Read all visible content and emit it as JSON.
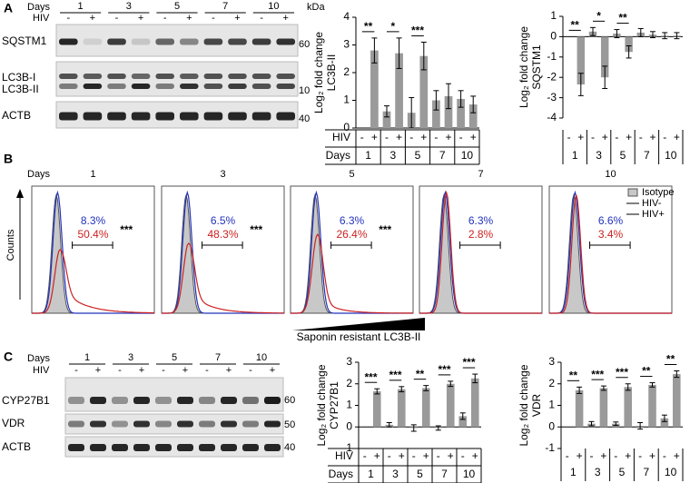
{
  "panels": [
    "A",
    "B",
    "C"
  ],
  "blots": [
    {
      "days_label": "Days",
      "hiv_label": "HIV",
      "kda_label": "kDa",
      "days": [
        "1",
        "3",
        "5",
        "7",
        "10"
      ],
      "hiv": [
        "-",
        "+",
        "-",
        "+",
        "-",
        "+",
        "-",
        "+",
        "-",
        "+"
      ],
      "rows": [
        {
          "labels": [
            "SQSTM1"
          ],
          "kda": "60"
        },
        {
          "labels": [
            "LC3B-I",
            "LC3B-II"
          ],
          "kda": "10"
        },
        {
          "labels": [
            "ACTB"
          ],
          "kda": "40"
        }
      ]
    },
    {
      "days_label": "Days",
      "hiv_label": "HIV",
      "days": [
        "1",
        "3",
        "5",
        "7",
        "10"
      ],
      "hiv": [
        "-",
        "+",
        "-",
        "+",
        "-",
        "+",
        "-",
        "+",
        "-",
        "+"
      ],
      "rows": [
        {
          "labels": [
            "CYP27B1"
          ],
          "kda": "60"
        },
        {
          "labels": [
            "VDR"
          ],
          "kda": "50"
        },
        {
          "labels": [
            "ACTB"
          ],
          "kda": "40"
        }
      ]
    }
  ],
  "flow": {
    "days_label": "Days",
    "ylabel": "Counts",
    "xlabel": "Saponin resistant LC3B-II",
    "legend": [
      "Isotype",
      "HIV-",
      "HIV+"
    ],
    "panels": [
      {
        "day": "1",
        "neg": "8.3%",
        "pos": "50.4%",
        "sig": "***"
      },
      {
        "day": "3",
        "neg": "6.5%",
        "pos": "48.3%",
        "sig": "***"
      },
      {
        "day": "5",
        "neg": "6.3%",
        "pos": "26.4%",
        "sig": "***"
      },
      {
        "day": "7",
        "neg": "6.3%",
        "pos": "2.8%",
        "sig": null
      },
      {
        "day": "10",
        "neg": "6.6%",
        "pos": "3.4%",
        "sig": null
      }
    ]
  },
  "chart_data": [
    {
      "type": "bar",
      "ylabel": [
        "Log₂ fold change",
        "LC3B-II"
      ],
      "group_label": "Days",
      "series_label": "HIV",
      "categories": [
        "1",
        "3",
        "5",
        "7",
        "10"
      ],
      "ylim": [
        0,
        4
      ],
      "yticks": [
        0,
        1,
        2,
        3,
        4
      ],
      "series": [
        {
          "name": "-",
          "color": "#9a9a9a",
          "values": [
            0,
            0.6,
            0.55,
            1.0,
            1.05
          ],
          "errors": [
            0,
            0.2,
            0.55,
            0.35,
            0.3
          ]
        },
        {
          "name": "+",
          "color": "#9a9a9a",
          "values": [
            2.8,
            2.7,
            2.6,
            1.15,
            0.85
          ],
          "errors": [
            0.45,
            0.55,
            0.5,
            0.45,
            0.3
          ]
        }
      ],
      "annotations": [
        "**",
        "*",
        "***",
        null,
        null
      ]
    },
    {
      "type": "bar",
      "ylabel": [
        "Log₂ fold change",
        "SQSTM1"
      ],
      "categories": [
        "1",
        "3",
        "5",
        "7",
        "10"
      ],
      "ylim": [
        -4,
        1
      ],
      "yticks": [
        -4,
        -3,
        -2,
        -1,
        0,
        1
      ],
      "series": [
        {
          "name": "-",
          "color": "#9a9a9a",
          "values": [
            0,
            0.25,
            0.15,
            0.2,
            0.05
          ],
          "errors": [
            0,
            0.2,
            0.2,
            0.2,
            0.15
          ]
        },
        {
          "name": "+",
          "color": "#9a9a9a",
          "values": [
            -2.35,
            -2.0,
            -0.75,
            0.1,
            0.05
          ],
          "errors": [
            0.55,
            0.55,
            0.3,
            0.15,
            0.15
          ]
        }
      ],
      "annotations": [
        "**",
        "*",
        "**",
        null,
        null
      ]
    },
    {
      "type": "bar",
      "ylabel": [
        "Log₂ fold change",
        "CYP27B1"
      ],
      "group_label": "Days",
      "series_label": "HIV",
      "categories": [
        "1",
        "3",
        "5",
        "7",
        "10"
      ],
      "ylim": [
        -1,
        3
      ],
      "yticks": [
        -1,
        0,
        1,
        2,
        3
      ],
      "series": [
        {
          "name": "-",
          "color": "#9a9a9a",
          "values": [
            0,
            0.1,
            -0.05,
            -0.05,
            0.5
          ],
          "errors": [
            0,
            0.1,
            0.15,
            0.1,
            0.15
          ]
        },
        {
          "name": "+",
          "color": "#9a9a9a",
          "values": [
            1.65,
            1.75,
            1.8,
            2.0,
            2.25
          ],
          "errors": [
            0.12,
            0.12,
            0.12,
            0.12,
            0.2
          ]
        }
      ],
      "annotations": [
        "***",
        "***",
        "**",
        "***",
        "***"
      ]
    },
    {
      "type": "bar",
      "ylabel": [
        "Log₂ fold change",
        "VDR"
      ],
      "categories": [
        "1",
        "3",
        "5",
        "7",
        "10"
      ],
      "ylim": [
        -1,
        3
      ],
      "yticks": [
        -1,
        0,
        1,
        2,
        3
      ],
      "series": [
        {
          "name": "-",
          "color": "#9a9a9a",
          "values": [
            0,
            0.15,
            0.15,
            0.05,
            0.4
          ],
          "errors": [
            0,
            0.1,
            0.08,
            0.15,
            0.15
          ]
        },
        {
          "name": "+",
          "color": "#9a9a9a",
          "values": [
            1.7,
            1.8,
            1.85,
            1.95,
            2.45
          ],
          "errors": [
            0.15,
            0.1,
            0.15,
            0.1,
            0.15
          ]
        }
      ],
      "annotations": [
        "**",
        "***",
        "***",
        "**",
        "**"
      ]
    }
  ]
}
